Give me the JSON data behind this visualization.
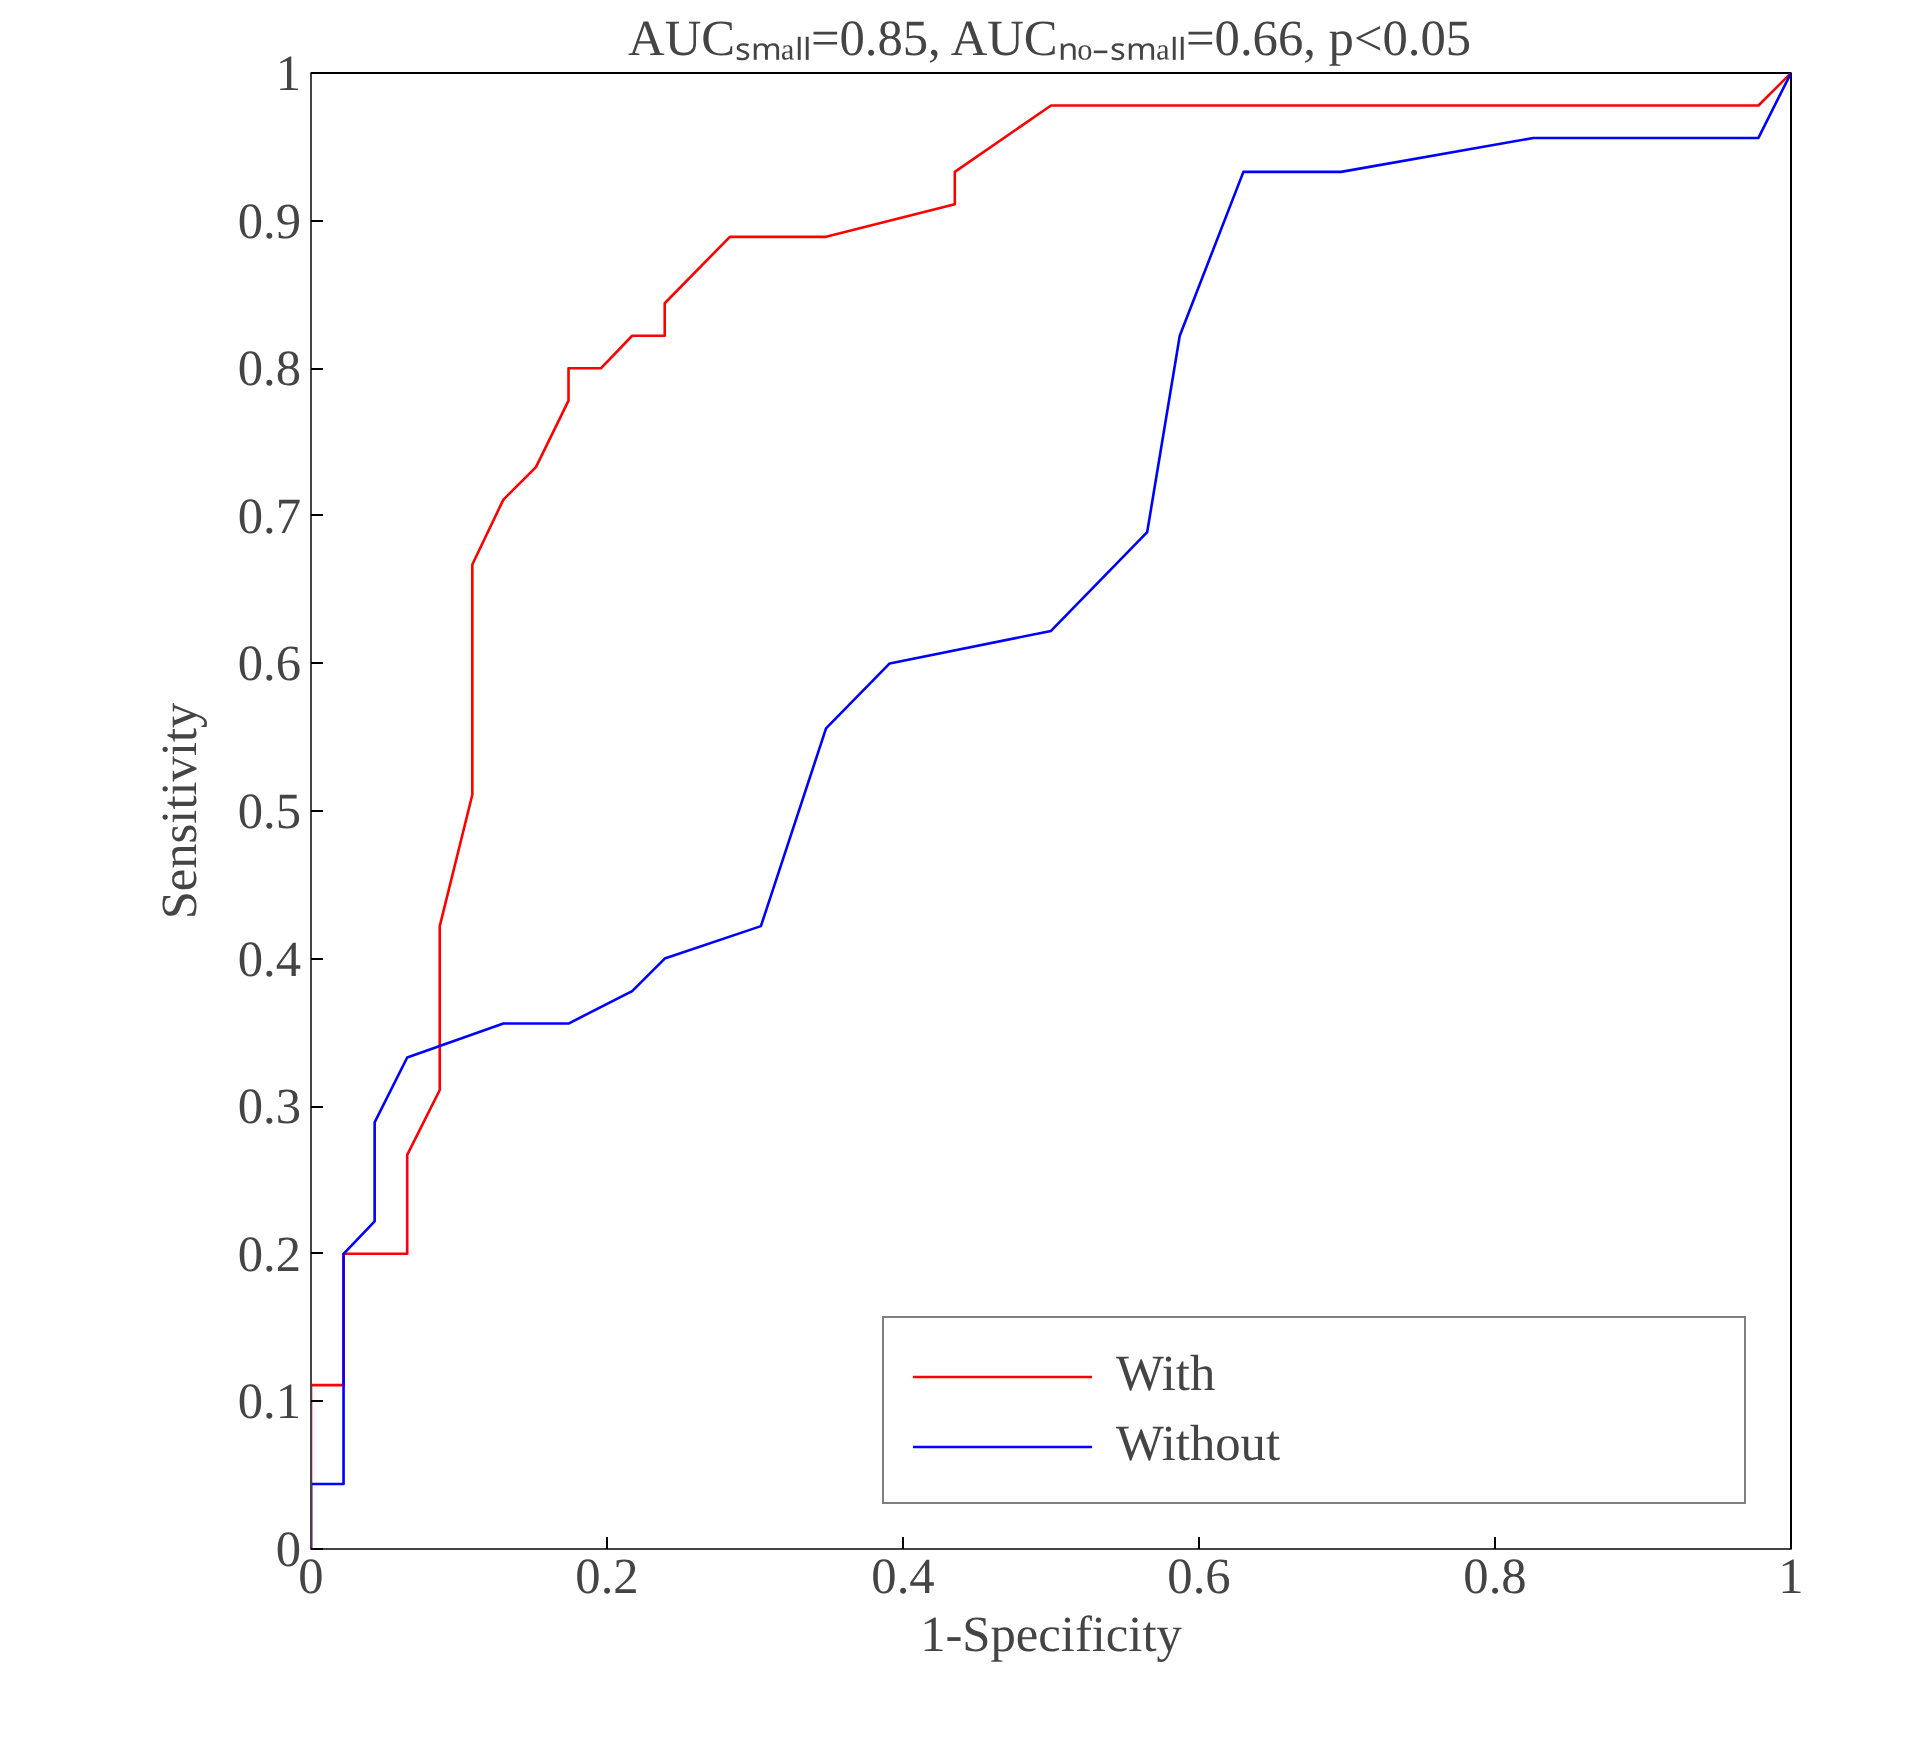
{
  "chart_data": {
    "type": "line",
    "title": "AUCₛₘₐₗₗ=0.85, AUCₙₒ₋ₛₘₐₗₗ=0.66, p<0.05",
    "xlabel": "1-Specificity",
    "ylabel": "Sensitivity",
    "xlim": [
      0,
      1
    ],
    "ylim": [
      0,
      1
    ],
    "xticks": [
      0,
      0.2,
      0.4,
      0.6,
      0.8,
      1
    ],
    "yticks": [
      0,
      0.1,
      0.2,
      0.3,
      0.4,
      0.5,
      0.6,
      0.7,
      0.8,
      0.9,
      1
    ],
    "grid": false,
    "legend": "bottom right",
    "line_style": "solid",
    "series": [
      {
        "name": "With",
        "color": "#ff0000",
        "x": [
          0,
          0,
          0.022,
          0.022,
          0.065,
          0.065,
          0.087,
          0.087,
          0.109,
          0.109,
          0.13,
          0.152,
          0.174,
          0.174,
          0.196,
          0.217,
          0.239,
          0.239,
          0.283,
          0.348,
          0.435,
          0.435,
          0.5,
          0.978,
          1
        ],
        "values": [
          0,
          0.111,
          0.111,
          0.2,
          0.2,
          0.267,
          0.311,
          0.422,
          0.511,
          0.667,
          0.711,
          0.733,
          0.778,
          0.8,
          0.8,
          0.822,
          0.822,
          0.844,
          0.889,
          0.889,
          0.911,
          0.933,
          0.978,
          0.978,
          1
        ]
      },
      {
        "name": "Without",
        "color": "#0000ff",
        "x": [
          0,
          0,
          0.022,
          0.022,
          0.043,
          0.043,
          0.065,
          0.13,
          0.174,
          0.217,
          0.239,
          0.304,
          0.348,
          0.391,
          0.5,
          0.565,
          0.587,
          0.63,
          0.696,
          0.826,
          0.978,
          1
        ],
        "values": [
          0,
          0.044,
          0.044,
          0.2,
          0.222,
          0.289,
          0.333,
          0.356,
          0.356,
          0.378,
          0.4,
          0.422,
          0.556,
          0.6,
          0.622,
          0.689,
          0.822,
          0.933,
          0.933,
          0.956,
          0.956,
          1
        ]
      }
    ]
  }
}
